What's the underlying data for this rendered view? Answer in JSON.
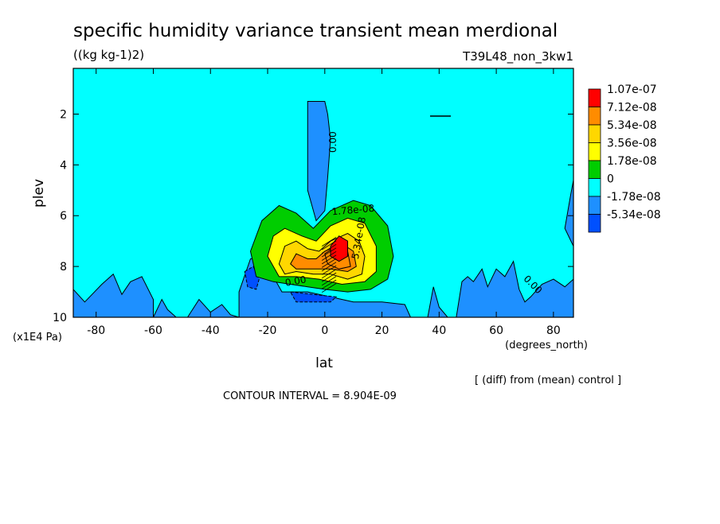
{
  "chart_data": {
    "type": "heatmap",
    "title": "specific humidity variance transient mean merdional",
    "units": "((kg kg-1)2)",
    "experiment": "T39L48_non_3kw1",
    "xlabel": "lat",
    "xunits": "(degrees_north)",
    "ylabel": "plev",
    "yunits": "(x1E4 Pa)",
    "x_ticks": [
      "-80",
      "-60",
      "-40",
      "-20",
      "0",
      "20",
      "40",
      "60",
      "80"
    ],
    "x_tick_values": [
      -80,
      -60,
      -40,
      -20,
      0,
      20,
      40,
      60,
      80
    ],
    "y_ticks": [
      "2",
      "4",
      "6",
      "8",
      "10"
    ],
    "y_tick_values": [
      2,
      4,
      6,
      8,
      10
    ],
    "xlim": [
      -88,
      87
    ],
    "ylim": [
      0.2,
      10
    ],
    "y_inverted": true,
    "legend": {
      "placement": "right",
      "labels": [
        "1.07e-07",
        "7.12e-08",
        "5.34e-08",
        "3.56e-08",
        "1.78e-08",
        "0",
        "-1.78e-08",
        "-5.34e-08"
      ],
      "colors": [
        "#ff0000",
        "#ff8c00",
        "#ffd700",
        "#ffff00",
        "#00cd00",
        "#00ffff",
        "#1e90ff",
        "#0050ff"
      ]
    },
    "contour_labels": [
      {
        "text": "0.00",
        "x": 4,
        "y": 3.1,
        "rotate": -90
      },
      {
        "text": "1.78e-08",
        "x": 10,
        "y": 5.9,
        "rotate": -5
      },
      {
        "text": "5.34e-08",
        "x": 13,
        "y": 6.9,
        "rotate": -80
      },
      {
        "text": "0.00",
        "x": -10,
        "y": 8.7,
        "rotate": -10
      },
      {
        "text": "0.00",
        "x": 72,
        "y": 8.8,
        "rotate": 45
      }
    ],
    "regions": [
      {
        "level": "neg1",
        "pts": [
          [
            -6,
            1.5
          ],
          [
            0,
            1.5
          ],
          [
            1,
            2.0
          ],
          [
            2,
            3.0
          ],
          [
            1,
            4.5
          ],
          [
            0,
            5.8
          ],
          [
            -3,
            6.2
          ],
          [
            -6,
            5.0
          ],
          [
            -6,
            3.0
          ]
        ]
      },
      {
        "level": "neg1",
        "pts": [
          [
            -88,
            8.9
          ],
          [
            -84,
            9.4
          ],
          [
            -78,
            8.7
          ],
          [
            -74,
            8.3
          ],
          [
            -71,
            9.1
          ],
          [
            -68,
            8.6
          ],
          [
            -64,
            8.4
          ],
          [
            -60,
            9.3
          ],
          [
            -60,
            10
          ],
          [
            -88,
            10
          ]
        ]
      },
      {
        "level": "neg1",
        "pts": [
          [
            -60,
            10
          ],
          [
            -57,
            9.3
          ],
          [
            -55,
            9.7
          ],
          [
            -52,
            10
          ]
        ]
      },
      {
        "level": "neg1",
        "pts": [
          [
            -48,
            10
          ],
          [
            -44,
            9.3
          ],
          [
            -40,
            9.8
          ],
          [
            -36,
            9.5
          ],
          [
            -33,
            9.9
          ],
          [
            -30,
            10
          ]
        ]
      },
      {
        "level": "neg1",
        "pts": [
          [
            -30,
            9.0
          ],
          [
            -26,
            7.7
          ],
          [
            -22,
            7.6
          ],
          [
            -18,
            8.4
          ],
          [
            -15,
            9.0
          ],
          [
            -6,
            9.0
          ],
          [
            2,
            9.2
          ],
          [
            10,
            9.4
          ],
          [
            20,
            9.4
          ],
          [
            28,
            9.5
          ],
          [
            30,
            10
          ],
          [
            -30,
            10
          ]
        ]
      },
      {
        "level": "neg1",
        "pts": [
          [
            36,
            10
          ],
          [
            38,
            8.8
          ],
          [
            40,
            9.6
          ],
          [
            43,
            10
          ]
        ]
      },
      {
        "level": "neg1",
        "pts": [
          [
            46,
            10
          ],
          [
            48,
            8.6
          ],
          [
            50,
            8.4
          ],
          [
            52,
            8.6
          ],
          [
            55,
            8.1
          ],
          [
            57,
            8.8
          ],
          [
            60,
            8.1
          ],
          [
            63,
            8.4
          ],
          [
            66,
            7.8
          ],
          [
            68,
            8.9
          ],
          [
            70,
            9.4
          ],
          [
            72,
            9.2
          ],
          [
            76,
            8.7
          ],
          [
            80,
            8.5
          ],
          [
            84,
            8.8
          ],
          [
            87,
            8.5
          ],
          [
            87,
            10
          ]
        ]
      },
      {
        "level": "neg1",
        "pts": [
          [
            84,
            6.5
          ],
          [
            86,
            5.2
          ],
          [
            87,
            4.6
          ],
          [
            87,
            7.2
          ]
        ]
      },
      {
        "level": "neg2",
        "pts": [
          [
            -28,
            8.2
          ],
          [
            -25,
            8.0
          ],
          [
            -23,
            8.5
          ],
          [
            -24,
            8.9
          ],
          [
            -27,
            8.8
          ]
        ]
      },
      {
        "level": "neg2",
        "pts": [
          [
            -12,
            9.0
          ],
          [
            -4,
            9.1
          ],
          [
            4,
            9.2
          ],
          [
            2,
            9.4
          ],
          [
            -10,
            9.4
          ]
        ]
      },
      {
        "level": "pos1",
        "pts": [
          [
            -26,
            7.4
          ],
          [
            -22,
            6.2
          ],
          [
            -16,
            5.6
          ],
          [
            -10,
            5.9
          ],
          [
            -4,
            6.5
          ],
          [
            2,
            5.8
          ],
          [
            10,
            5.4
          ],
          [
            16,
            5.6
          ],
          [
            22,
            6.4
          ],
          [
            24,
            7.6
          ],
          [
            22,
            8.5
          ],
          [
            16,
            8.9
          ],
          [
            8,
            9.0
          ],
          [
            0,
            8.9
          ],
          [
            -6,
            8.8
          ],
          [
            -12,
            8.7
          ],
          [
            -18,
            8.6
          ],
          [
            -24,
            8.4
          ]
        ]
      },
      {
        "level": "pos2",
        "pts": [
          [
            -20,
            7.6
          ],
          [
            -18,
            6.8
          ],
          [
            -14,
            6.5
          ],
          [
            -8,
            6.8
          ],
          [
            -3,
            7.0
          ],
          [
            2,
            6.4
          ],
          [
            8,
            6.1
          ],
          [
            14,
            6.3
          ],
          [
            18,
            7.2
          ],
          [
            18,
            8.2
          ],
          [
            14,
            8.6
          ],
          [
            6,
            8.7
          ],
          [
            -2,
            8.5
          ],
          [
            -10,
            8.4
          ],
          [
            -16,
            8.4
          ]
        ]
      },
      {
        "level": "pos3",
        "pts": [
          [
            -16,
            7.9
          ],
          [
            -14,
            7.2
          ],
          [
            -10,
            7.0
          ],
          [
            -6,
            7.3
          ],
          [
            -2,
            7.4
          ],
          [
            2,
            7.0
          ],
          [
            8,
            6.7
          ],
          [
            12,
            7.0
          ],
          [
            14,
            7.6
          ],
          [
            13,
            8.3
          ],
          [
            8,
            8.5
          ],
          [
            2,
            8.3
          ],
          [
            -4,
            8.3
          ],
          [
            -10,
            8.2
          ],
          [
            -14,
            8.3
          ]
        ]
      },
      {
        "level": "pos4",
        "pts": [
          [
            -12,
            7.9
          ],
          [
            -10,
            7.5
          ],
          [
            -6,
            7.7
          ],
          [
            -3,
            7.7
          ],
          [
            0,
            7.4
          ],
          [
            6,
            7.1
          ],
          [
            10,
            7.4
          ],
          [
            11,
            8.0
          ],
          [
            8,
            8.2
          ],
          [
            2,
            8.1
          ],
          [
            -4,
            8.1
          ],
          [
            -10,
            8.1
          ]
        ]
      },
      {
        "level": "pos5",
        "pts": [
          [
            0,
            7.5
          ],
          [
            4,
            7.2
          ],
          [
            8,
            7.4
          ],
          [
            9,
            8.0
          ],
          [
            5,
            8.1
          ],
          [
            1,
            7.9
          ]
        ]
      },
      {
        "level": "pos6",
        "pts": [
          [
            2,
            7.2
          ],
          [
            5,
            6.8
          ],
          [
            8,
            7.0
          ],
          [
            8,
            7.6
          ],
          [
            5,
            7.8
          ],
          [
            2,
            7.6
          ]
        ]
      }
    ]
  },
  "footer": {
    "diff_note": "[ (diff) from (mean) control ]",
    "contour_interval": "CONTOUR INTERVAL = 8.904E-09"
  }
}
